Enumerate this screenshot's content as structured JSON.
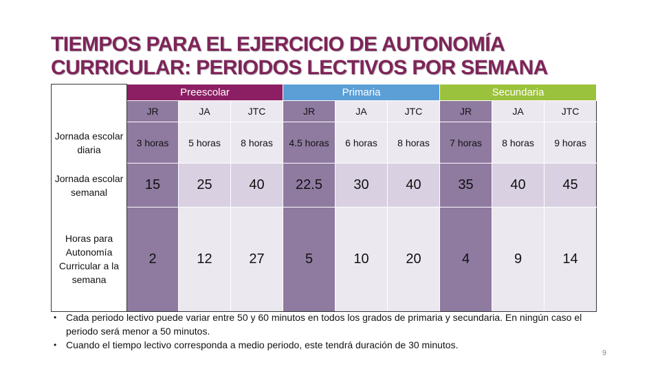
{
  "title": {
    "line1": "TIEMPOS PARA EL EJERCICIO DE AUTONOMÍA",
    "line2": "CURRICULAR: PERIODOS LECTIVOS POR SEMANA"
  },
  "table": {
    "groups": {
      "preescolar": "Preescolar",
      "primaria": "Primaria",
      "secundaria": "Secundaria"
    },
    "subheaders": [
      "JR",
      "JA",
      "JTC",
      "JR",
      "JA",
      "JTC",
      "JR",
      "JA",
      "JTC"
    ],
    "rows": [
      {
        "label": "Jornada escolar diaria",
        "values": [
          "3 horas",
          "5 horas",
          "8 horas",
          "4.5  horas",
          "6 horas",
          "8 horas",
          "7  horas",
          "8 horas",
          "9  horas"
        ]
      },
      {
        "label": "Jornada escolar semanal",
        "values": [
          "15",
          "25",
          "40",
          "22.5",
          "30",
          "40",
          "35",
          "40",
          "45"
        ]
      },
      {
        "label": "Horas para Autonomía Curricular a la semana",
        "values": [
          "2",
          "12",
          "27",
          "5",
          "10",
          "20",
          "4",
          "9",
          "14"
        ]
      }
    ],
    "colors": {
      "preescolar": "#8c1f64",
      "primaria": "#5b9fd6",
      "secundaria": "#9bc23c",
      "dark_cell": "#8f7aa0",
      "light_cell": "#ece8f0",
      "mid_cell": "#d9d0e2"
    }
  },
  "notes": [
    "Cada periodo lectivo puede variar entre 50 y 60 minutos en todos los grados de primaria y secundaria. En ningún caso el periodo será  menor a 50 minutos.",
    "Cuando el tiempo lectivo corresponda a medio periodo, este tendrá duración de 30 minutos."
  ],
  "page_number": "9"
}
